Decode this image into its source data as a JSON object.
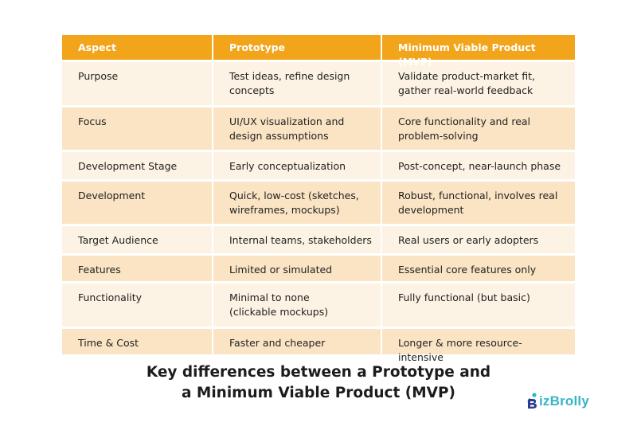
{
  "table": {
    "headers": [
      "Aspect",
      "Prototype",
      "Minimum Viable Product (MVP)"
    ],
    "rows": [
      {
        "aspect": "Purpose",
        "prototype": [
          "Test ideas, refine design",
          "concepts"
        ],
        "mvp": [
          "Validate product-market fit,",
          "gather real-world feedback"
        ]
      },
      {
        "aspect": "Focus",
        "prototype": [
          "UI/UX visualization and",
          "design assumptions"
        ],
        "mvp": [
          "Core functionality and real",
          "problem-solving"
        ]
      },
      {
        "aspect": "Development Stage",
        "prototype": [
          "Early conceptualization"
        ],
        "mvp": [
          "Post-concept, near-launch phase"
        ]
      },
      {
        "aspect": "Development",
        "prototype": [
          "Quick, low-cost (sketches,",
          "wireframes, mockups)"
        ],
        "mvp": [
          "Robust, functional, involves real",
          "development"
        ]
      },
      {
        "aspect": "Target Audience",
        "prototype": [
          "Internal teams, stakeholders"
        ],
        "mvp": [
          "Real users or early adopters"
        ]
      },
      {
        "aspect": "Features",
        "prototype": [
          "Limited or simulated"
        ],
        "mvp": [
          "Essential core features only"
        ]
      },
      {
        "aspect": "Functionality",
        "prototype": [
          "Minimal to none",
          "(clickable mockups)"
        ],
        "mvp": [
          "Fully functional (but basic)"
        ]
      },
      {
        "aspect": "Time & Cost",
        "prototype": [
          "Faster and cheaper"
        ],
        "mvp": [
          "Longer & more resource-intensive"
        ]
      }
    ]
  },
  "caption": {
    "line1": "Key differences between a Prototype and",
    "line2": "a Minimum Viable Product (MVP)"
  },
  "logo": {
    "text": "izBrolly",
    "color": "#35b4c8"
  },
  "colors": {
    "header": "#f2a41a",
    "row_light": "#fdf3e4",
    "row_dark": "#fae4c4"
  }
}
